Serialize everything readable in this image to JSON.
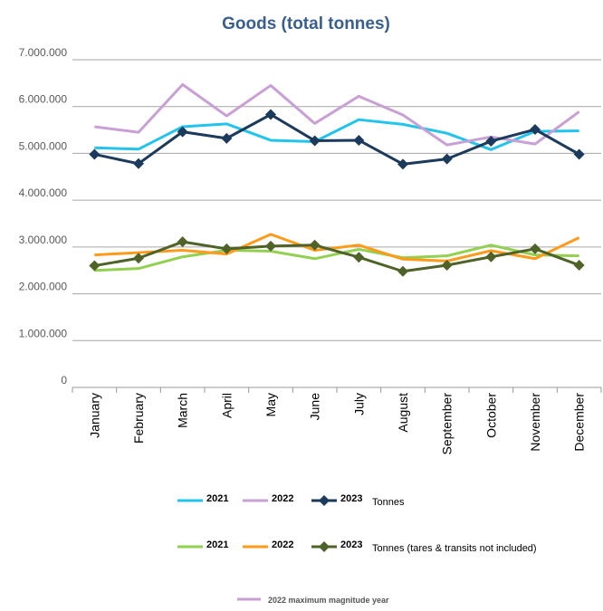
{
  "chart_data": {
    "type": "line",
    "title": "Goods (total tonnes)",
    "xlabel": "",
    "ylabel": "",
    "ylim": [
      0,
      7000000
    ],
    "y_ticks": [
      "0",
      "1.000.000",
      "2.000.000",
      "3.000.000",
      "4.000.000",
      "5.000.000",
      "6.000.000",
      "7.000.000"
    ],
    "y_tick_values": [
      0,
      1000000,
      2000000,
      3000000,
      4000000,
      5000000,
      6000000,
      7000000
    ],
    "categories": [
      "January",
      "February",
      "March",
      "April",
      "May",
      "June",
      "July",
      "August",
      "September",
      "October",
      "November",
      "December"
    ],
    "grid": "horizontal",
    "legend_position": "bottom",
    "series": [
      {
        "name": "2021",
        "group": "Tonnes",
        "color": "#22c4ec",
        "marker": "none",
        "values": [
          5120000,
          5090000,
          5570000,
          5630000,
          5280000,
          5250000,
          5720000,
          5620000,
          5430000,
          5080000,
          5470000,
          5480000
        ]
      },
      {
        "name": "2022",
        "group": "Tonnes",
        "color": "#c9a0d6",
        "marker": "none",
        "values": [
          5570000,
          5450000,
          6470000,
          5800000,
          6450000,
          5640000,
          6220000,
          5820000,
          5180000,
          5350000,
          5200000,
          5890000
        ]
      },
      {
        "name": "2023",
        "group": "Tonnes",
        "color": "#1b3a5c",
        "marker": "diamond",
        "values": [
          4980000,
          4780000,
          5460000,
          5320000,
          5830000,
          5270000,
          5280000,
          4770000,
          4880000,
          5260000,
          5510000,
          4980000
        ]
      },
      {
        "name": "2021",
        "group": "Tonnes  (tares & transits not included)",
        "color": "#92d050",
        "marker": "none",
        "values": [
          2500000,
          2540000,
          2790000,
          2930000,
          2910000,
          2750000,
          2950000,
          2770000,
          2810000,
          3040000,
          2830000,
          2810000
        ]
      },
      {
        "name": "2022",
        "group": "Tonnes  (tares & transits not included)",
        "color": "#ff9a1a",
        "marker": "none",
        "values": [
          2830000,
          2880000,
          2930000,
          2850000,
          3270000,
          2930000,
          3040000,
          2740000,
          2700000,
          2920000,
          2750000,
          3200000
        ]
      },
      {
        "name": "2023",
        "group": "Tonnes  (tares & transits not included)",
        "color": "#4f6228",
        "marker": "diamond",
        "values": [
          2600000,
          2760000,
          3110000,
          2960000,
          3020000,
          3040000,
          2780000,
          2480000,
          2610000,
          2790000,
          2960000,
          2610000
        ]
      }
    ],
    "legend": {
      "row1": {
        "items": [
          "2021",
          "2022",
          "2023"
        ],
        "label": "Tonnes"
      },
      "row2": {
        "items": [
          "2021",
          "2022",
          "2023"
        ],
        "label": "Tonnes  (tares & transits not included)"
      },
      "note": "2022 maximum magnitude year"
    }
  }
}
